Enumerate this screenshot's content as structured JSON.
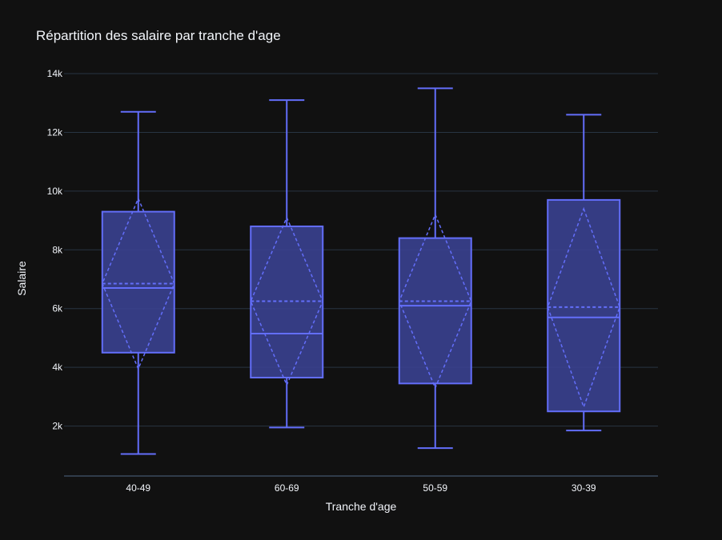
{
  "chart_data": {
    "type": "box",
    "title": "Répartition des salaire par tranche d'age",
    "xlabel": "Tranche d'age",
    "ylabel": "Salaire",
    "ylim": [
      300,
      14600
    ],
    "yticks": [
      2000,
      4000,
      6000,
      8000,
      10000,
      12000,
      14000
    ],
    "ytick_labels": [
      "2k",
      "4k",
      "6k",
      "8k",
      "10k",
      "12k",
      "14k"
    ],
    "grid": true,
    "colors": {
      "background": "#111111",
      "grid": "#283442",
      "axis_line": "#506784",
      "box_line": "#636efa",
      "box_fill": "#3a4190",
      "text": "#f2f5fa"
    },
    "categories": [
      "40-49",
      "60-69",
      "50-59",
      "30-39"
    ],
    "boxes": [
      {
        "category": "40-49",
        "min": 1050,
        "q1": 4500,
        "median": 6700,
        "q3": 9300,
        "max": 12700,
        "mean": 6850,
        "sd_low": 3950,
        "sd_high": 9750
      },
      {
        "category": "60-69",
        "min": 1950,
        "q1": 3650,
        "median": 5150,
        "q3": 8800,
        "max": 13100,
        "mean": 6250,
        "sd_low": 3400,
        "sd_high": 9100
      },
      {
        "category": "50-59",
        "min": 1250,
        "q1": 3450,
        "median": 6100,
        "q3": 8400,
        "max": 13500,
        "mean": 6250,
        "sd_low": 3300,
        "sd_high": 9200
      },
      {
        "category": "30-39",
        "min": 1850,
        "q1": 2500,
        "median": 5700,
        "q3": 9700,
        "max": 12600,
        "mean": 6050,
        "sd_low": 2650,
        "sd_high": 9400
      }
    ]
  }
}
